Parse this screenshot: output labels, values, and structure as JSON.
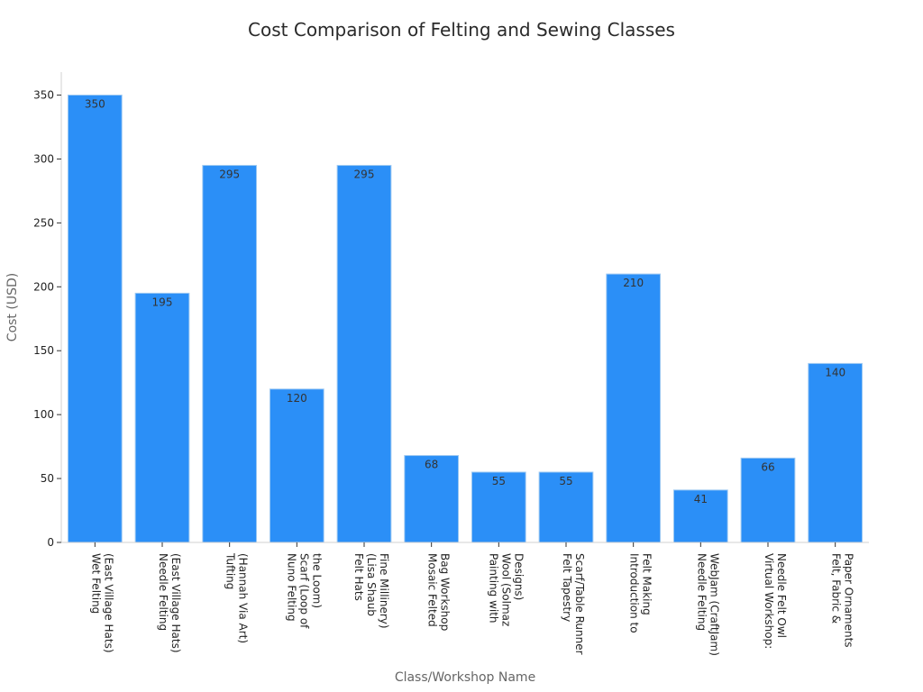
{
  "chart_data": {
    "type": "bar",
    "title": "Cost Comparison of Felting and Sewing Classes",
    "xlabel": "Class/Workshop Name",
    "ylabel": "Cost (USD)",
    "ylim": [
      0,
      368
    ],
    "yticks": [
      0,
      50,
      100,
      150,
      200,
      250,
      300,
      350
    ],
    "grid": false,
    "categories": [
      [
        "Wet Felting",
        "(East Village Hats)"
      ],
      [
        "Needle Felting",
        "(East Village Hats)"
      ],
      [
        "Tufting",
        "(Hannah Via Art)"
      ],
      [
        "Nuno Felting",
        "Scarf (Loop of",
        "the Loom)"
      ],
      [
        "Felt Hats",
        "(Lisa Shaub",
        "Fine Millinery)"
      ],
      [
        "Mosaic Felted",
        "Bag Workshop"
      ],
      [
        "Painting with",
        "Wool (Solmaz",
        "Designs)"
      ],
      [
        "Felt Tapestry",
        "Scarf/Table Runner"
      ],
      [
        "Introduction to",
        "Felt Making"
      ],
      [
        "Needle Felting",
        "WebJam (CraftJam)"
      ],
      [
        "Virtual Workshop:",
        "Needle Felt Owl"
      ],
      [
        "Felt, Fabric &",
        "Paper Ornaments"
      ]
    ],
    "values": [
      350,
      195,
      295,
      120,
      295,
      68,
      55,
      55,
      210,
      41,
      66,
      140
    ],
    "colors": {
      "bar": "#2b8ff7"
    }
  }
}
